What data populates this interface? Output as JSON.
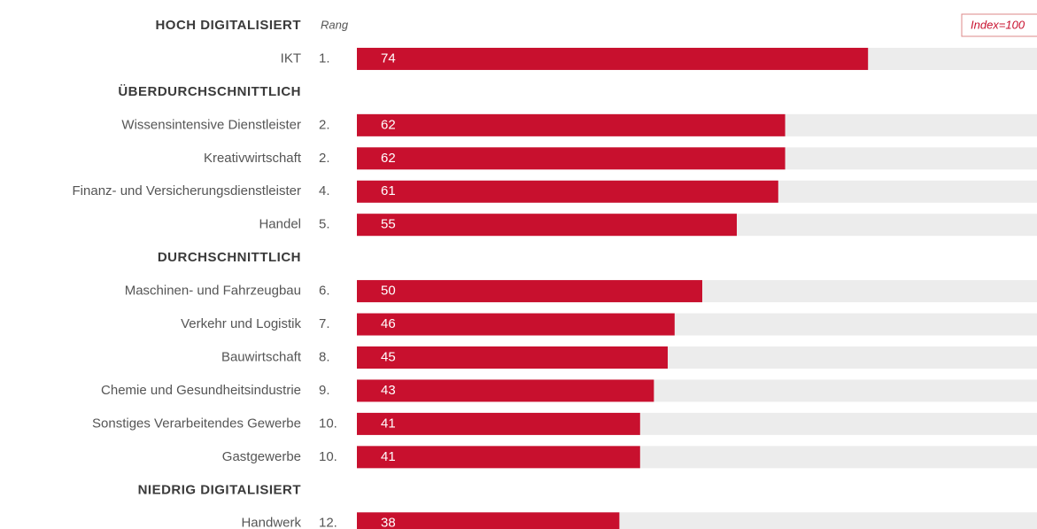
{
  "chart_data": {
    "type": "bar",
    "rank_header": "Rang",
    "index_label": "Index=100",
    "color": "#c8102e",
    "track_color": "#ececec",
    "xlim": [
      0,
      100
    ],
    "groups": [
      {
        "title": "HOCH DIGITALISIERT",
        "categories": [
          "IKT"
        ],
        "ranks": [
          "1."
        ],
        "values": [
          74
        ]
      },
      {
        "title": "ÜBERDURCHSCHNITTLICH",
        "categories": [
          "Wissensintensive Dienstleister",
          "Kreativwirtschaft",
          "Finanz- und Versicherungsdienstleister",
          "Handel"
        ],
        "ranks": [
          "2.",
          "2.",
          "4.",
          "5."
        ],
        "values": [
          62,
          62,
          61,
          55
        ]
      },
      {
        "title": "DURCHSCHNITTLICH",
        "categories": [
          "Maschinen- und Fahrzeugbau",
          "Verkehr und Logistik",
          "Bauwirtschaft",
          "Chemie und Gesundheitsindustrie",
          "Sonstiges Verarbeitendes Gewerbe",
          "Gastgewerbe"
        ],
        "ranks": [
          "6.",
          "7.",
          "8.",
          "9.",
          "10.",
          "10."
        ],
        "values": [
          50,
          46,
          45,
          43,
          41,
          41
        ]
      },
      {
        "title": "NIEDRIG DIGITALISIERT",
        "categories": [
          "Handwerk"
        ],
        "ranks": [
          "12."
        ],
        "values": [
          38
        ]
      }
    ]
  }
}
